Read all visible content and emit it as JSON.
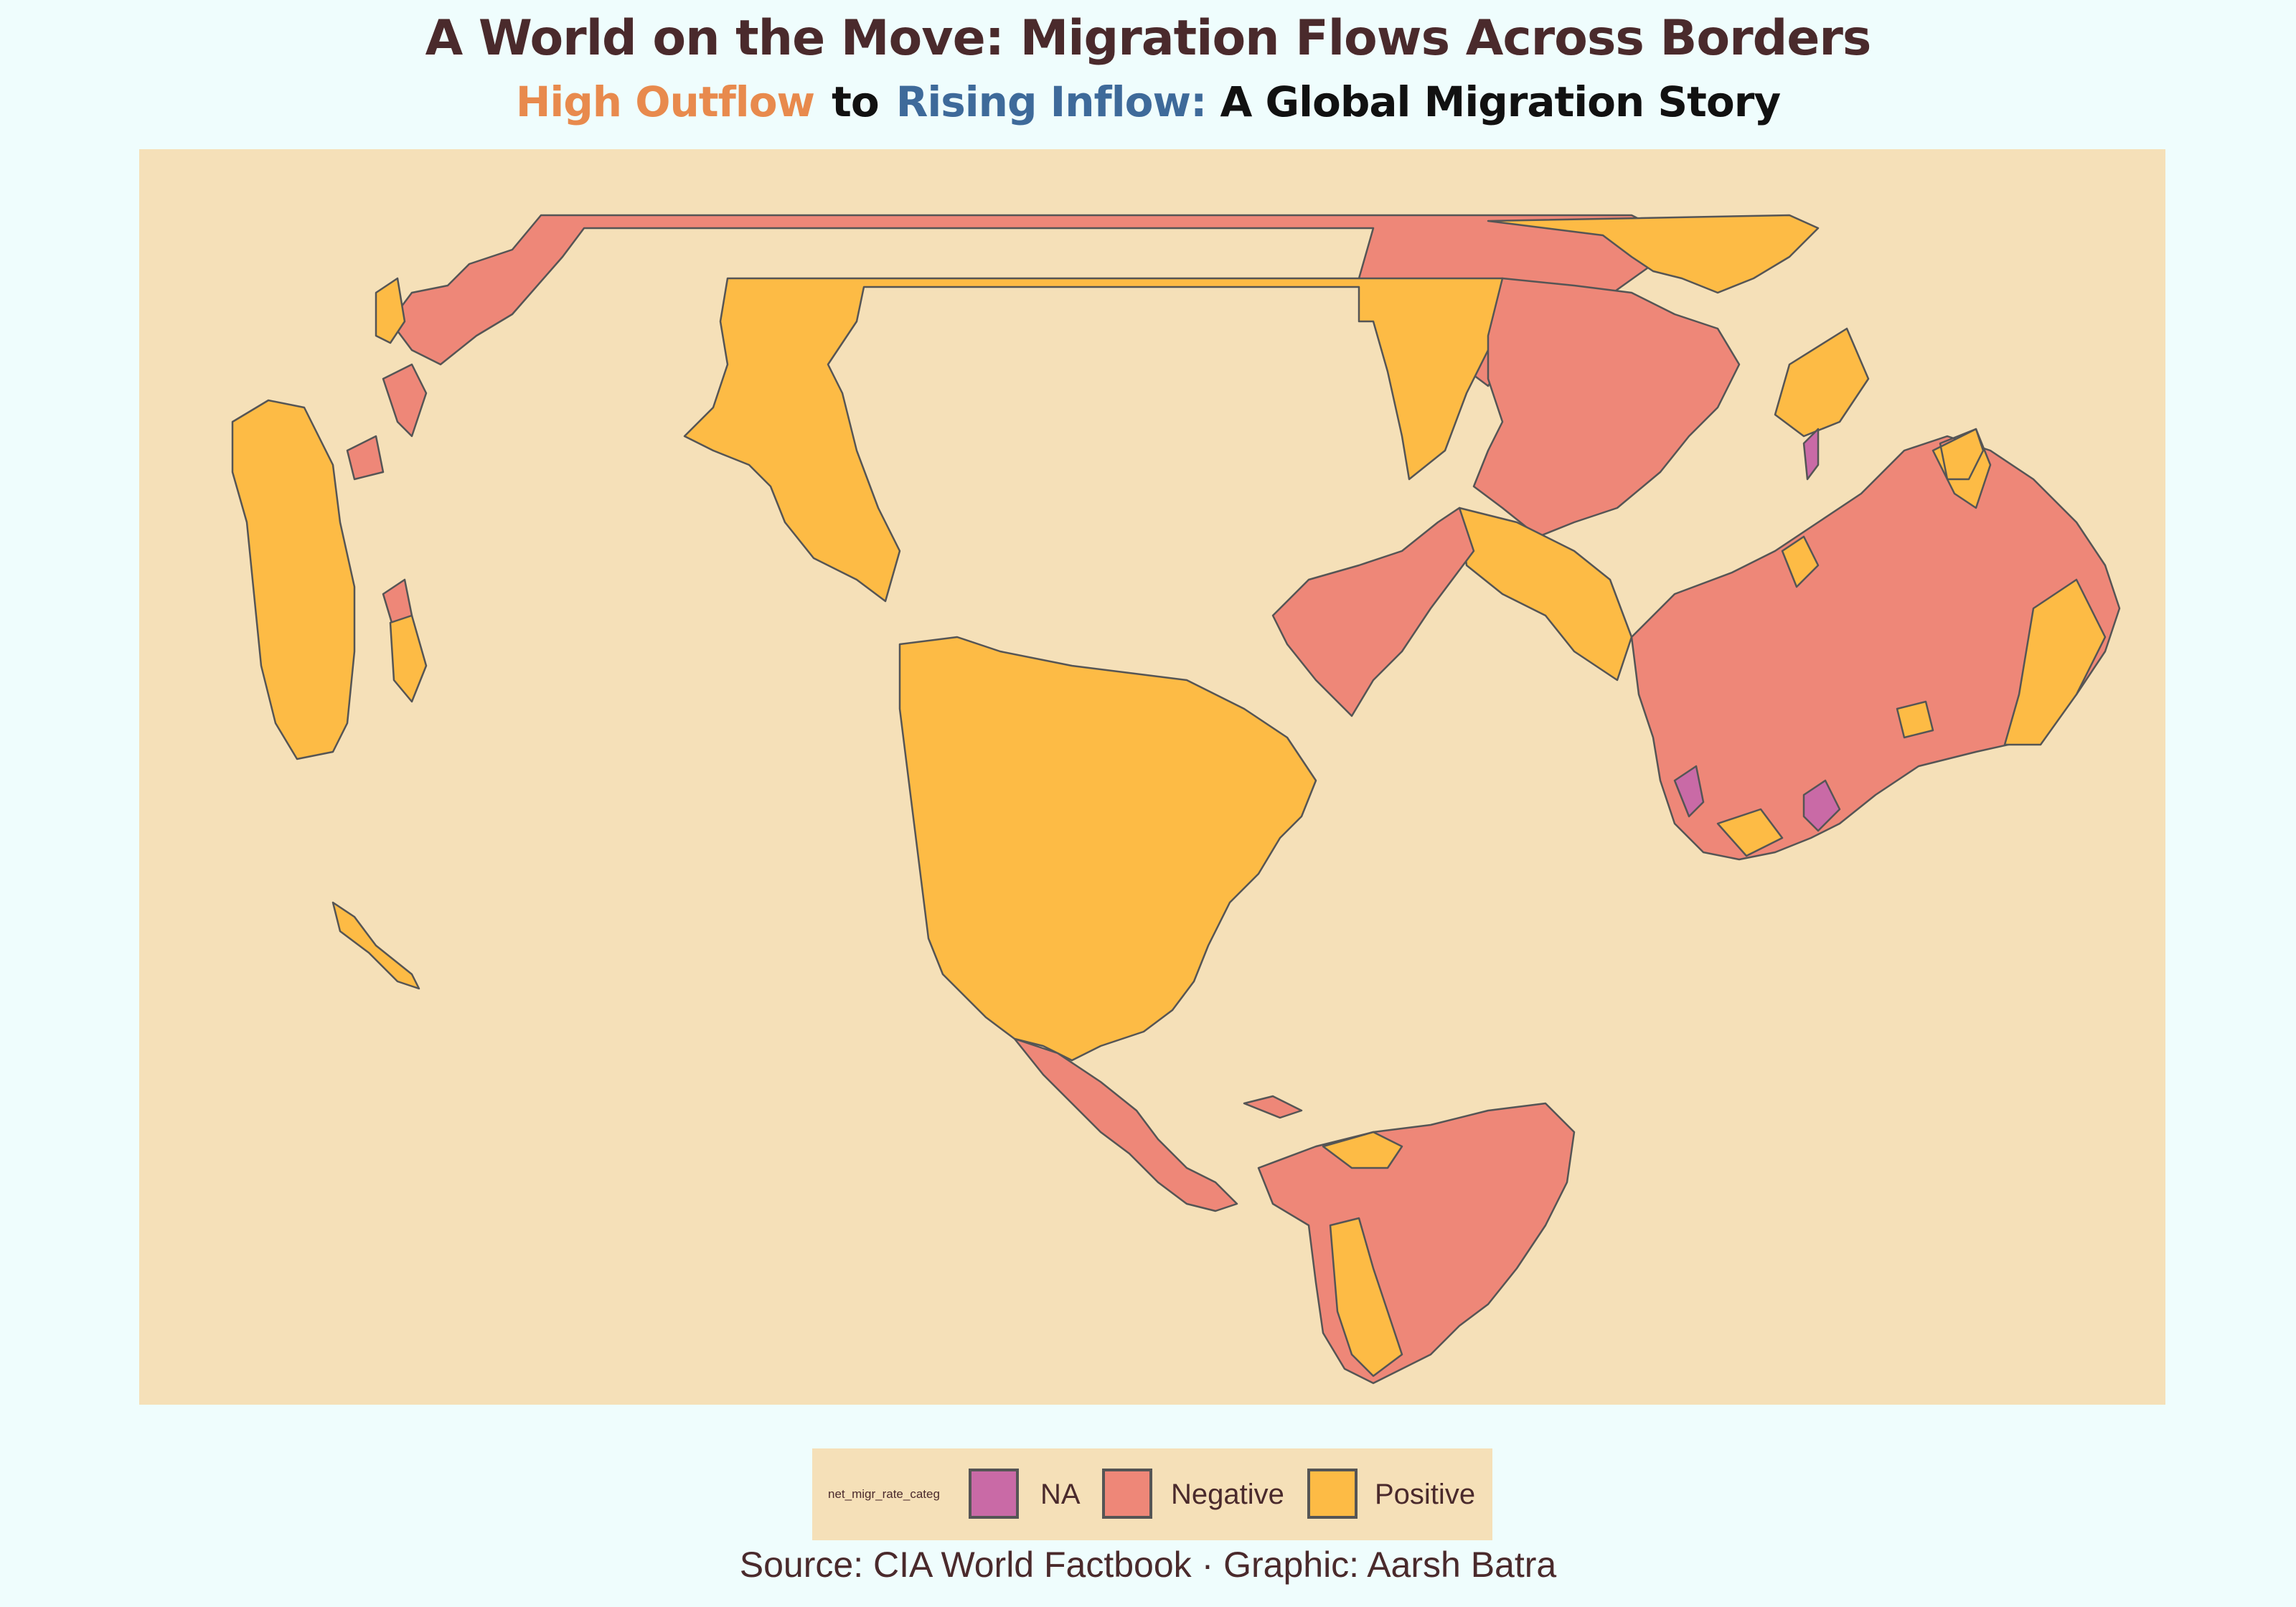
{
  "title": "A World on the Move: Migration Flows Across Borders",
  "subtitle": {
    "part_outflow": "High Outflow",
    "part_to": "to",
    "part_inflow": "Rising Inflow:",
    "part_rest": "A Global Migration Story"
  },
  "legend": {
    "title": "net_migr_rate_categ",
    "items": [
      {
        "label": "NA",
        "color": "#c96aa6"
      },
      {
        "label": "Negative",
        "color": "#ee8778"
      },
      {
        "label": "Positive",
        "color": "#fdbb45"
      }
    ]
  },
  "caption": "Source: CIA World Factbook · Graphic: Aarsh Batra",
  "colors": {
    "background": "#effdfd",
    "panel": "#f5e0b8",
    "border": "#555555",
    "outflow_text": "#e88a4d",
    "inflow_text": "#3e6a9a"
  },
  "regions": [
    {
      "name": "north-america",
      "category": "Positive"
    },
    {
      "name": "mexico-central-america",
      "category": "Negative"
    },
    {
      "name": "south-america",
      "category": "Negative"
    },
    {
      "name": "south-america-andes",
      "category": "Positive"
    },
    {
      "name": "greenland",
      "category": "Negative"
    },
    {
      "name": "russia-band",
      "category": "Negative"
    },
    {
      "name": "asia-band",
      "category": "Positive"
    },
    {
      "name": "east-asia",
      "category": "Negative"
    },
    {
      "name": "europe",
      "category": "Positive"
    },
    {
      "name": "africa",
      "category": "Negative"
    },
    {
      "name": "southern-africa-na",
      "category": "NA"
    },
    {
      "name": "australia",
      "category": "Positive"
    },
    {
      "name": "indonesia-philippines",
      "category": "Negative"
    },
    {
      "name": "new-zealand",
      "category": "Positive"
    }
  ]
}
